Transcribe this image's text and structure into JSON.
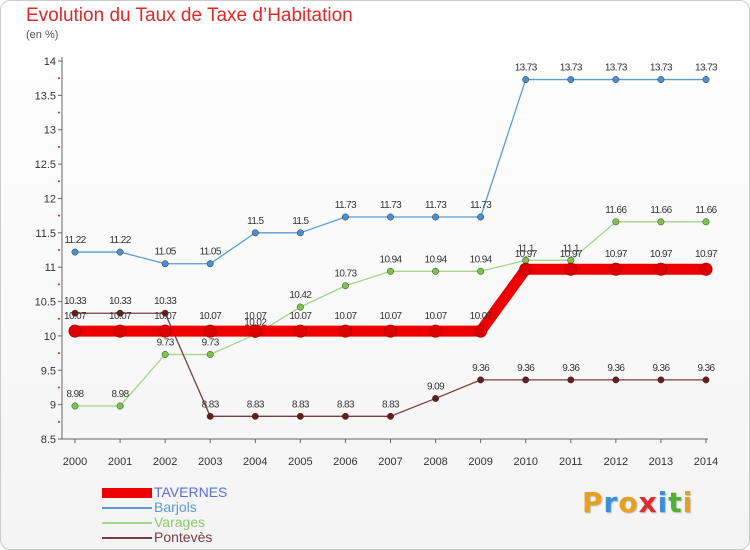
{
  "title": "Evolution du Taux de Taxe d’Habitation",
  "unit_label": "(en %)",
  "brand": {
    "letters": [
      {
        "char": "P",
        "color": "#e8a020"
      },
      {
        "char": "r",
        "color": "#3a8fd8"
      },
      {
        "char": "o",
        "color": "#e8a020"
      },
      {
        "char": "x",
        "color": "#d83030"
      },
      {
        "char": "i",
        "color": "#3a8fd8"
      },
      {
        "char": "t",
        "color": "#50b030"
      },
      {
        "char": "i",
        "color": "#e8a020"
      }
    ]
  },
  "chart_data": {
    "type": "line",
    "x": [
      "2000",
      "2001",
      "2002",
      "2003",
      "2004",
      "2005",
      "2006",
      "2007",
      "2008",
      "2009",
      "2010",
      "2011",
      "2012",
      "2013",
      "2014"
    ],
    "ylim": [
      8.5,
      14
    ],
    "yticks": [
      "8.5",
      "9",
      "9.5",
      "10",
      "10.5",
      "11",
      "11.5",
      "12",
      "12.5",
      "13",
      "13.5",
      "14"
    ],
    "grid": false,
    "legend_position": "bottom-left",
    "series": [
      {
        "name": "Barjols",
        "color": "#5b9bd5",
        "marker": "#4a90d0",
        "values": [
          11.22,
          11.22,
          11.05,
          11.05,
          11.5,
          11.5,
          11.73,
          11.73,
          11.73,
          11.73,
          13.73,
          13.73,
          13.73,
          13.73,
          13.73
        ],
        "labels": [
          "11.22",
          "11.22",
          "11.05",
          "11.05",
          "11.5",
          "11.5",
          "11.73",
          "11.73",
          "11.73",
          "11.73",
          "13.73",
          "13.73",
          "13.73",
          "13.73",
          "13.73"
        ]
      },
      {
        "name": "Varages",
        "color": "#a3d68a",
        "marker": "#7cc44c",
        "values": [
          8.98,
          8.98,
          9.73,
          9.73,
          10.02,
          10.42,
          10.73,
          10.94,
          10.94,
          10.94,
          11.1,
          11.1,
          11.66,
          11.66,
          11.66
        ],
        "labels": [
          "8.98",
          "8.98",
          "9.73",
          "9.73",
          "10.02",
          "10.42",
          "10.73",
          "10.94",
          "10.94",
          "10.94",
          "11.1",
          "11.1",
          "11.66",
          "11.66",
          "11.66"
        ]
      },
      {
        "name": "Pontevès",
        "color": "#7a3d3d",
        "marker": "#6a1c1c",
        "values": [
          10.33,
          10.33,
          10.33,
          8.83,
          8.83,
          8.83,
          8.83,
          8.83,
          9.09,
          9.36,
          9.36,
          9.36,
          9.36,
          9.36,
          9.36
        ],
        "labels": [
          "10.33",
          "10.33",
          "10.33",
          "8.83",
          "8.83",
          "8.83",
          "8.83",
          "8.83",
          "9.09",
          "9.36",
          "9.36",
          "9.36",
          "9.36",
          "9.36",
          "9.36"
        ]
      },
      {
        "name": "TAVERNES",
        "color": "#ee0000",
        "marker": "#dd0000",
        "values": [
          10.07,
          10.07,
          10.07,
          10.07,
          10.07,
          10.07,
          10.07,
          10.07,
          10.07,
          10.07,
          10.97,
          10.97,
          10.97,
          10.97,
          10.97
        ],
        "labels": [
          "10.07",
          "10.07",
          "10.07",
          "10.07",
          "10.07",
          "10.07",
          "10.07",
          "10.07",
          "10.07",
          "10.07",
          "10.97",
          "10.97",
          "10.97",
          "10.97",
          "10.97"
        ]
      }
    ],
    "legend_order": [
      "TAVERNES",
      "Barjols",
      "Varages",
      "Pontevès"
    ]
  }
}
